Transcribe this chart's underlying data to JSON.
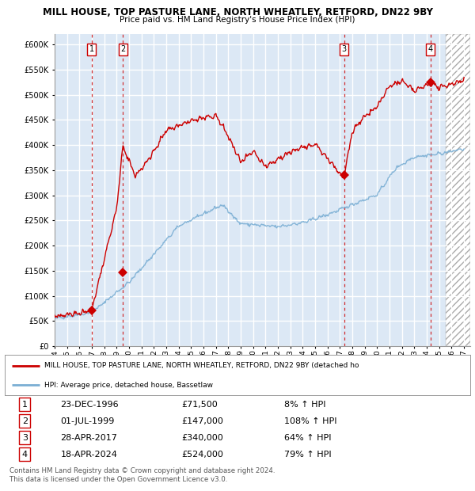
{
  "title": "MILL HOUSE, TOP PASTURE LANE, NORTH WHEATLEY, RETFORD, DN22 9BY",
  "subtitle": "Price paid vs. HM Land Registry's House Price Index (HPI)",
  "ylim": [
    0,
    620000
  ],
  "yticks": [
    0,
    50000,
    100000,
    150000,
    200000,
    250000,
    300000,
    350000,
    400000,
    450000,
    500000,
    550000,
    600000
  ],
  "xlim_start": 1994.0,
  "xlim_end": 2027.5,
  "sale_dates": [
    1996.98,
    1999.5,
    2017.33,
    2024.3
  ],
  "sale_prices": [
    71500,
    147000,
    340000,
    524000
  ],
  "sale_labels": [
    "1",
    "2",
    "3",
    "4"
  ],
  "sale_color": "#cc0000",
  "hpi_color": "#7bafd4",
  "legend_line1": "MILL HOUSE, TOP PASTURE LANE, NORTH WHEATLEY, RETFORD, DN22 9BY (detached ho",
  "legend_line2": "HPI: Average price, detached house, Bassetlaw",
  "table_data": [
    [
      "1",
      "23-DEC-1996",
      "£71,500",
      "8% ↑ HPI"
    ],
    [
      "2",
      "01-JUL-1999",
      "£147,000",
      "108% ↑ HPI"
    ],
    [
      "3",
      "28-APR-2017",
      "£340,000",
      "64% ↑ HPI"
    ],
    [
      "4",
      "18-APR-2024",
      "£524,000",
      "79% ↑ HPI"
    ]
  ],
  "footer": "Contains HM Land Registry data © Crown copyright and database right 2024.\nThis data is licensed under the Open Government Licence v3.0.",
  "background_color": "#dce8f5",
  "hatch_color": "#bbbbbb",
  "boundary_year": 2025.5,
  "grid_color": "#ffffff"
}
